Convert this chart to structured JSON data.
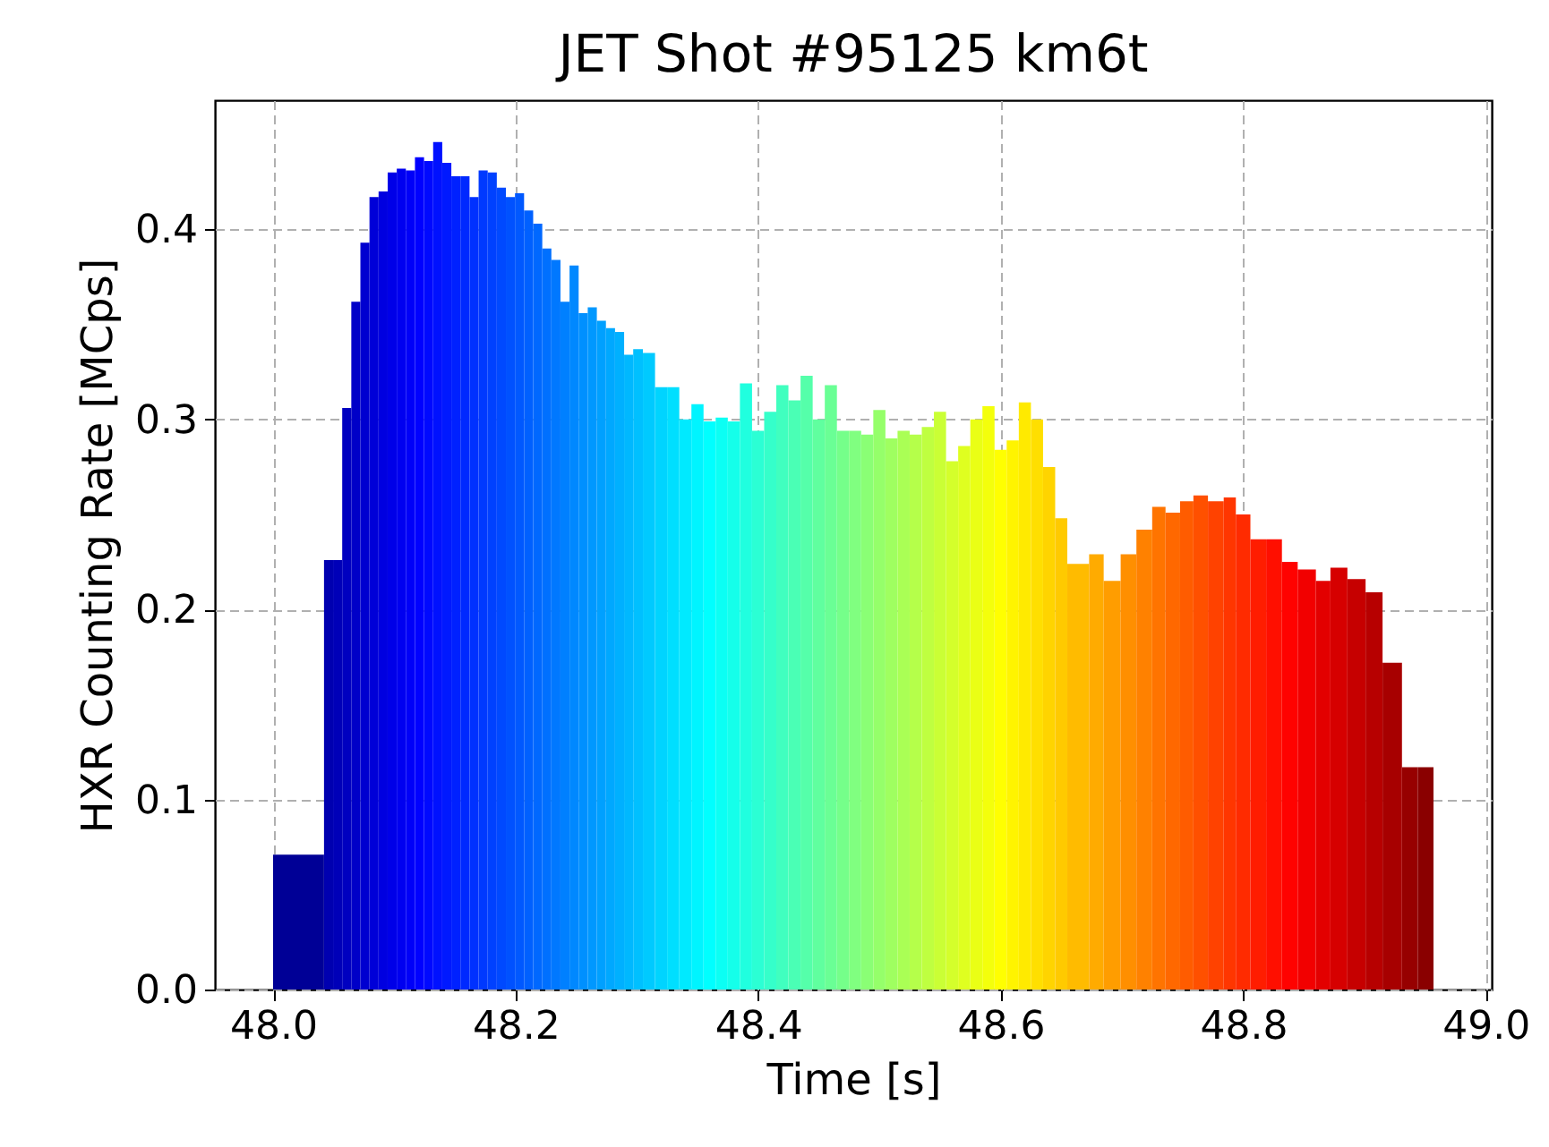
{
  "chart_data": {
    "type": "histogram",
    "title": "JET Shot #95125 km6t",
    "xlabel": "Time [s]",
    "ylabel": "HXR Counting Rate [MCps]",
    "bins": [
      48.0,
      48.042,
      48.0495,
      48.057,
      48.0645,
      48.072,
      48.0795,
      48.087,
      48.0945,
      48.102,
      48.1095,
      48.117,
      48.1245,
      48.132,
      48.1395,
      48.147,
      48.1545,
      48.162,
      48.1695,
      48.177,
      48.1845,
      48.192,
      48.1995,
      48.207,
      48.2145,
      48.222,
      48.2295,
      48.237,
      48.2445,
      48.252,
      48.2595,
      48.267,
      48.2745,
      48.282,
      48.2895,
      48.297,
      48.305,
      48.315,
      48.325,
      48.335,
      48.345,
      48.355,
      48.365,
      48.375,
      48.385,
      48.395,
      48.405,
      48.415,
      48.425,
      48.435,
      48.445,
      48.455,
      48.465,
      48.475,
      48.485,
      48.495,
      48.505,
      48.515,
      48.525,
      48.535,
      48.545,
      48.555,
      48.565,
      48.575,
      48.585,
      48.595,
      48.605,
      48.615,
      48.625,
      48.635,
      48.645,
      48.655,
      48.673,
      48.685,
      48.699,
      48.712,
      48.725,
      48.736,
      48.748,
      48.759,
      48.771,
      48.784,
      48.794,
      48.806,
      48.819,
      48.832,
      48.845,
      48.86,
      48.872,
      48.886,
      48.901,
      48.915,
      48.931,
      48.944,
      48.957
    ],
    "values": [
      0.071,
      0.226,
      0.226,
      0.306,
      0.362,
      0.393,
      0.417,
      0.42,
      0.43,
      0.432,
      0.431,
      0.438,
      0.436,
      0.446,
      0.435,
      0.428,
      0.428,
      0.417,
      0.431,
      0.43,
      0.422,
      0.417,
      0.419,
      0.41,
      0.403,
      0.39,
      0.384,
      0.362,
      0.381,
      0.356,
      0.359,
      0.352,
      0.348,
      0.346,
      0.334,
      0.337,
      0.335,
      0.317,
      0.317,
      0.3,
      0.308,
      0.299,
      0.301,
      0.299,
      0.319,
      0.294,
      0.304,
      0.318,
      0.31,
      0.323,
      0.3,
      0.318,
      0.294,
      0.294,
      0.292,
      0.305,
      0.29,
      0.294,
      0.292,
      0.296,
      0.304,
      0.278,
      0.286,
      0.3,
      0.307,
      0.284,
      0.289,
      0.309,
      0.3,
      0.275,
      0.248,
      0.224,
      0.229,
      0.215,
      0.229,
      0.242,
      0.254,
      0.251,
      0.257,
      0.26,
      0.257,
      0.259,
      0.25,
      0.237,
      0.237,
      0.225,
      0.221,
      0.215,
      0.222,
      0.216,
      0.209,
      0.172,
      0.117,
      0.117
    ],
    "colors": [
      "#000096",
      "#0000b0",
      "#0000b8",
      "#0000c0",
      "#0000c8",
      "#0000d0",
      "#0000d8",
      "#0000e0",
      "#0000e8",
      "#0000f0",
      "#0000f8",
      "#0001ff",
      "#0009ff",
      "#0011ff",
      "#0019ff",
      "#0021ff",
      "#0029ff",
      "#0031ff",
      "#0039ff",
      "#0041ff",
      "#0049ff",
      "#0051ff",
      "#0058ff",
      "#0060ff",
      "#0068ff",
      "#0070ff",
      "#0078ff",
      "#0080ff",
      "#0088ff",
      "#0090ff",
      "#0098ff",
      "#00a0ff",
      "#00a8ff",
      "#00b0ff",
      "#00b8ff",
      "#00c0ff",
      "#00caff",
      "#00d4ff",
      "#00dfff",
      "#00eaff",
      "#00f4ff",
      "#00ffff",
      "#0bfff4",
      "#15ffea",
      "#20ffdf",
      "#2bffd4",
      "#35ffca",
      "#40ffbf",
      "#4affb5",
      "#55ffaa",
      "#60ff9f",
      "#6aff95",
      "#75ff8a",
      "#80ff80",
      "#8aff75",
      "#95ff6a",
      "#9fff60",
      "#aaff55",
      "#b5ff4a",
      "#bfff40",
      "#caff35",
      "#d4ff2b",
      "#dfff20",
      "#eaff15",
      "#f4ff0b",
      "#ffff00",
      "#fff400",
      "#ffea00",
      "#ffdf00",
      "#ffd400",
      "#ffca00",
      "#ffbb00",
      "#ffab00",
      "#ff9d00",
      "#ff8f00",
      "#ff8100",
      "#ff7400",
      "#ff6800",
      "#ff5c00",
      "#ff5000",
      "#ff4200",
      "#ff3600",
      "#ff2b00",
      "#ff1d00",
      "#ff0f00",
      "#ff0200",
      "#f20000",
      "#e30000",
      "#d60000",
      "#c60000",
      "#b70000",
      "#a70000",
      "#970000",
      "#8a0000"
    ],
    "xlim": [
      47.952,
      49.005
    ],
    "ylim": [
      0,
      0.468
    ],
    "xticks": [
      {
        "value": 48,
        "label": "48.0"
      },
      48.2,
      48.4,
      48.6,
      48.8,
      {
        "value": 49,
        "label": "49.0"
      }
    ],
    "yticks": [
      {
        "value": 0,
        "label": "0.0"
      },
      0.1,
      0.2,
      0.3,
      0.4
    ],
    "grid": true
  }
}
